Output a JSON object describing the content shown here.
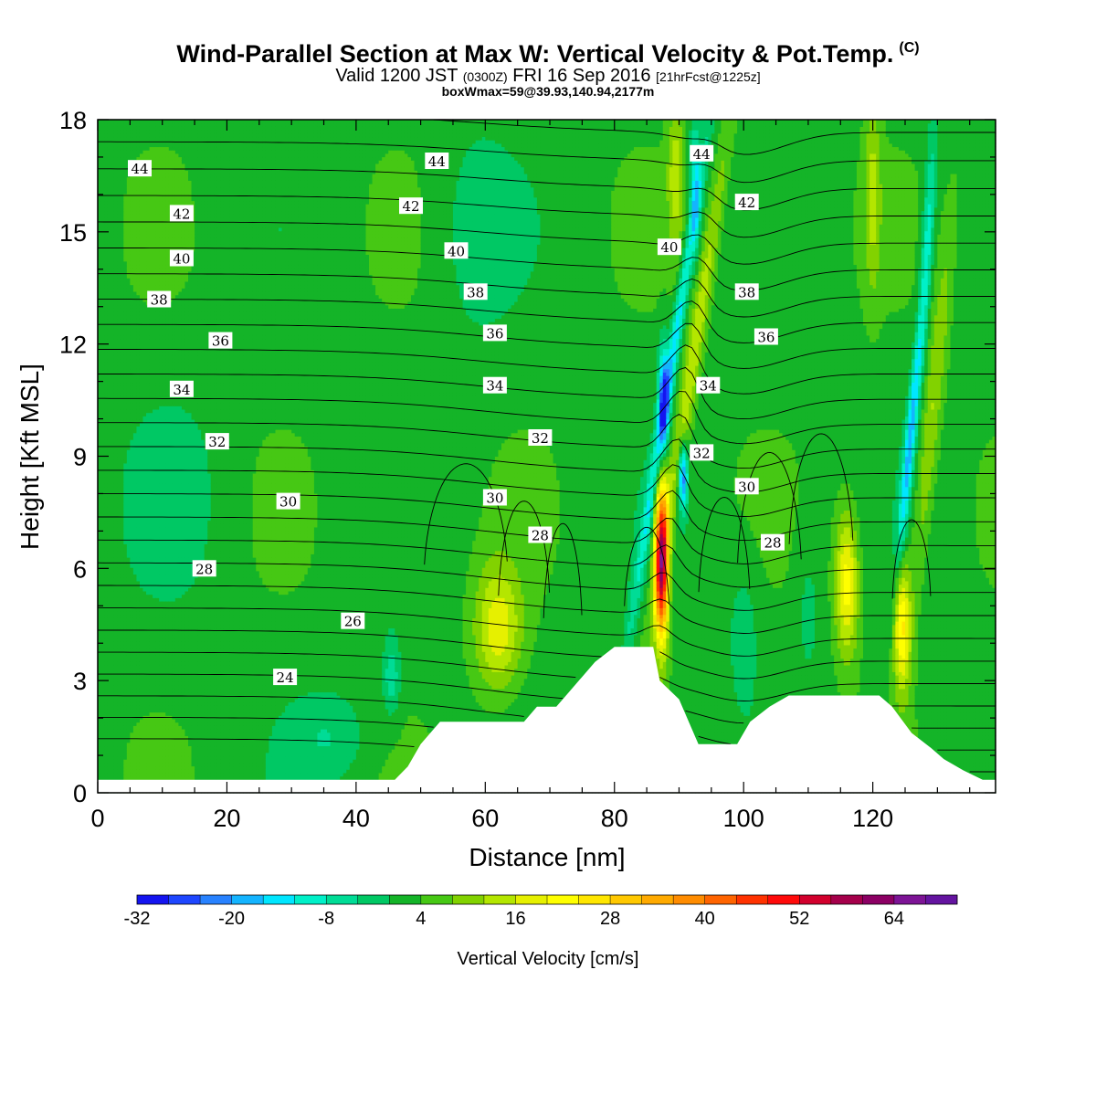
{
  "title": {
    "main": "Wind-Parallel Section at Max W: Vertical Velocity & Pot.Temp.",
    "copyright": "(C)",
    "valid_prefix": "Valid 1200 JST",
    "valid_utc": "(0300Z)",
    "valid_date": "FRI 16 Sep 2016",
    "forecast": "[21hrFcst@1225z]",
    "box": "boxWmax=59@39.93,140.94,2177m"
  },
  "chart_data": {
    "type": "heatmap",
    "xlabel": "Distance [nm]",
    "ylabel": "Height [Kft MSL]",
    "xlim": [
      0,
      139
    ],
    "ylim": [
      0,
      18
    ],
    "x_ticks": [
      0,
      20,
      40,
      60,
      80,
      100,
      120
    ],
    "y_ticks": [
      0,
      3,
      6,
      9,
      12,
      15,
      18
    ],
    "colorbar": {
      "label": "Vertical Velocity [cm/s]",
      "tick_labels": [
        "-32",
        "-20",
        "-8",
        "4",
        "16",
        "28",
        "40",
        "52",
        "64"
      ],
      "tick_values": [
        -32,
        -20,
        -8,
        4,
        16,
        28,
        40,
        52,
        64
      ],
      "min": -32,
      "max": 72,
      "step": 4,
      "colors": [
        "#1414f0",
        "#1e46ff",
        "#2882ff",
        "#14b4ff",
        "#00e6ff",
        "#00f0c8",
        "#00dc96",
        "#00c864",
        "#14b428",
        "#46c814",
        "#82d200",
        "#b4e600",
        "#e6f000",
        "#ffff00",
        "#ffe600",
        "#ffc800",
        "#ffaa00",
        "#ff8c00",
        "#ff6400",
        "#ff3200",
        "#ff0a0a",
        "#d2002d",
        "#a5004b",
        "#8c0064",
        "#7d1496",
        "#6414a0"
      ]
    },
    "contour_field": "potential temperature",
    "contour_labels": [
      {
        "text": "44",
        "x": 6.5,
        "y": 16.7
      },
      {
        "text": "44",
        "x": 52.5,
        "y": 16.9
      },
      {
        "text": "44",
        "x": 93.5,
        "y": 17.1
      },
      {
        "text": "42",
        "x": 13,
        "y": 15.5
      },
      {
        "text": "42",
        "x": 48.5,
        "y": 15.7
      },
      {
        "text": "42",
        "x": 100.5,
        "y": 15.8
      },
      {
        "text": "40",
        "x": 13,
        "y": 14.3
      },
      {
        "text": "40",
        "x": 55.5,
        "y": 14.5
      },
      {
        "text": "40",
        "x": 88.5,
        "y": 14.6
      },
      {
        "text": "38",
        "x": 9.5,
        "y": 13.2
      },
      {
        "text": "38",
        "x": 58.5,
        "y": 13.4
      },
      {
        "text": "38",
        "x": 100.5,
        "y": 13.4
      },
      {
        "text": "36",
        "x": 19,
        "y": 12.1
      },
      {
        "text": "36",
        "x": 61.5,
        "y": 12.3
      },
      {
        "text": "36",
        "x": 103.5,
        "y": 12.2
      },
      {
        "text": "34",
        "x": 13,
        "y": 10.8
      },
      {
        "text": "34",
        "x": 61.5,
        "y": 10.9
      },
      {
        "text": "34",
        "x": 94.5,
        "y": 10.9
      },
      {
        "text": "32",
        "x": 18.5,
        "y": 9.4
      },
      {
        "text": "32",
        "x": 68.5,
        "y": 9.5
      },
      {
        "text": "32",
        "x": 93.5,
        "y": 9.1
      },
      {
        "text": "30",
        "x": 29.5,
        "y": 7.8
      },
      {
        "text": "30",
        "x": 61.5,
        "y": 7.9
      },
      {
        "text": "30",
        "x": 100.5,
        "y": 8.2
      },
      {
        "text": "28",
        "x": 16.5,
        "y": 6.0
      },
      {
        "text": "28",
        "x": 68.5,
        "y": 6.9
      },
      {
        "text": "28",
        "x": 104.5,
        "y": 6.7
      },
      {
        "text": "26",
        "x": 39.5,
        "y": 4.6
      },
      {
        "text": "24",
        "x": 29,
        "y": 3.1
      }
    ],
    "terrain_height_kft": [
      [
        0,
        0.35
      ],
      [
        2,
        0.35
      ],
      [
        4,
        0.35
      ],
      [
        6,
        0.35
      ],
      [
        8,
        0.35
      ],
      [
        10,
        0.35
      ],
      [
        12,
        0.35
      ],
      [
        14,
        0.35
      ],
      [
        16,
        0.35
      ],
      [
        18,
        0.35
      ],
      [
        20,
        0.35
      ],
      [
        22,
        0.35
      ],
      [
        24,
        0.35
      ],
      [
        26,
        0.35
      ],
      [
        28,
        0.35
      ],
      [
        30,
        0.35
      ],
      [
        32,
        0.35
      ],
      [
        34,
        0.35
      ],
      [
        36,
        0.35
      ],
      [
        38,
        0.35
      ],
      [
        40,
        0.35
      ],
      [
        42,
        0.35
      ],
      [
        44,
        0.35
      ],
      [
        46,
        0.35
      ],
      [
        48,
        0.7
      ],
      [
        50,
        1.3
      ],
      [
        53,
        1.9
      ],
      [
        57,
        1.9
      ],
      [
        60,
        1.9
      ],
      [
        63,
        1.9
      ],
      [
        66,
        1.9
      ],
      [
        68,
        2.3
      ],
      [
        71,
        2.3
      ],
      [
        74,
        2.9
      ],
      [
        77,
        3.5
      ],
      [
        80,
        3.9
      ],
      [
        83,
        3.9
      ],
      [
        86,
        3.9
      ],
      [
        87,
        3.0
      ],
      [
        90,
        2.5
      ],
      [
        93,
        1.3
      ],
      [
        96,
        1.3
      ],
      [
        99,
        1.3
      ],
      [
        101,
        1.9
      ],
      [
        104,
        2.3
      ],
      [
        107,
        2.6
      ],
      [
        110,
        2.6
      ],
      [
        113,
        2.6
      ],
      [
        116,
        2.6
      ],
      [
        119,
        2.6
      ],
      [
        121,
        2.6
      ],
      [
        123,
        2.3
      ],
      [
        126,
        1.6
      ],
      [
        129,
        1.2
      ],
      [
        131,
        0.9
      ],
      [
        134,
        0.6
      ],
      [
        137,
        0.35
      ],
      [
        139,
        0.35
      ]
    ],
    "w_features_cm_s": [
      {
        "x": 62,
        "y": 4.4,
        "w_max": 20
      },
      {
        "x": 87.3,
        "y": 6.2,
        "w_max": 59
      },
      {
        "x": 116,
        "y": 5.6,
        "w_max": 22
      },
      {
        "x": 124.5,
        "y": 4.5,
        "w_max": 24
      },
      {
        "x": 87.5,
        "y": 10.6,
        "w_max": -24
      },
      {
        "x": 90.5,
        "y": 8.5,
        "w_max": -26
      },
      {
        "x": 92.5,
        "y": 16.2,
        "w_max": -18
      },
      {
        "x": 125.5,
        "y": 8.1,
        "w_max": -24
      },
      {
        "x": 122.5,
        "y": 10.6,
        "w_max": -20
      },
      {
        "x": 128.5,
        "y": 14.5,
        "w_max": -12
      },
      {
        "x": 45.5,
        "y": 3.1,
        "w_max": -10
      },
      {
        "x": 36,
        "y": 1.5,
        "w_max": -6
      }
    ]
  }
}
